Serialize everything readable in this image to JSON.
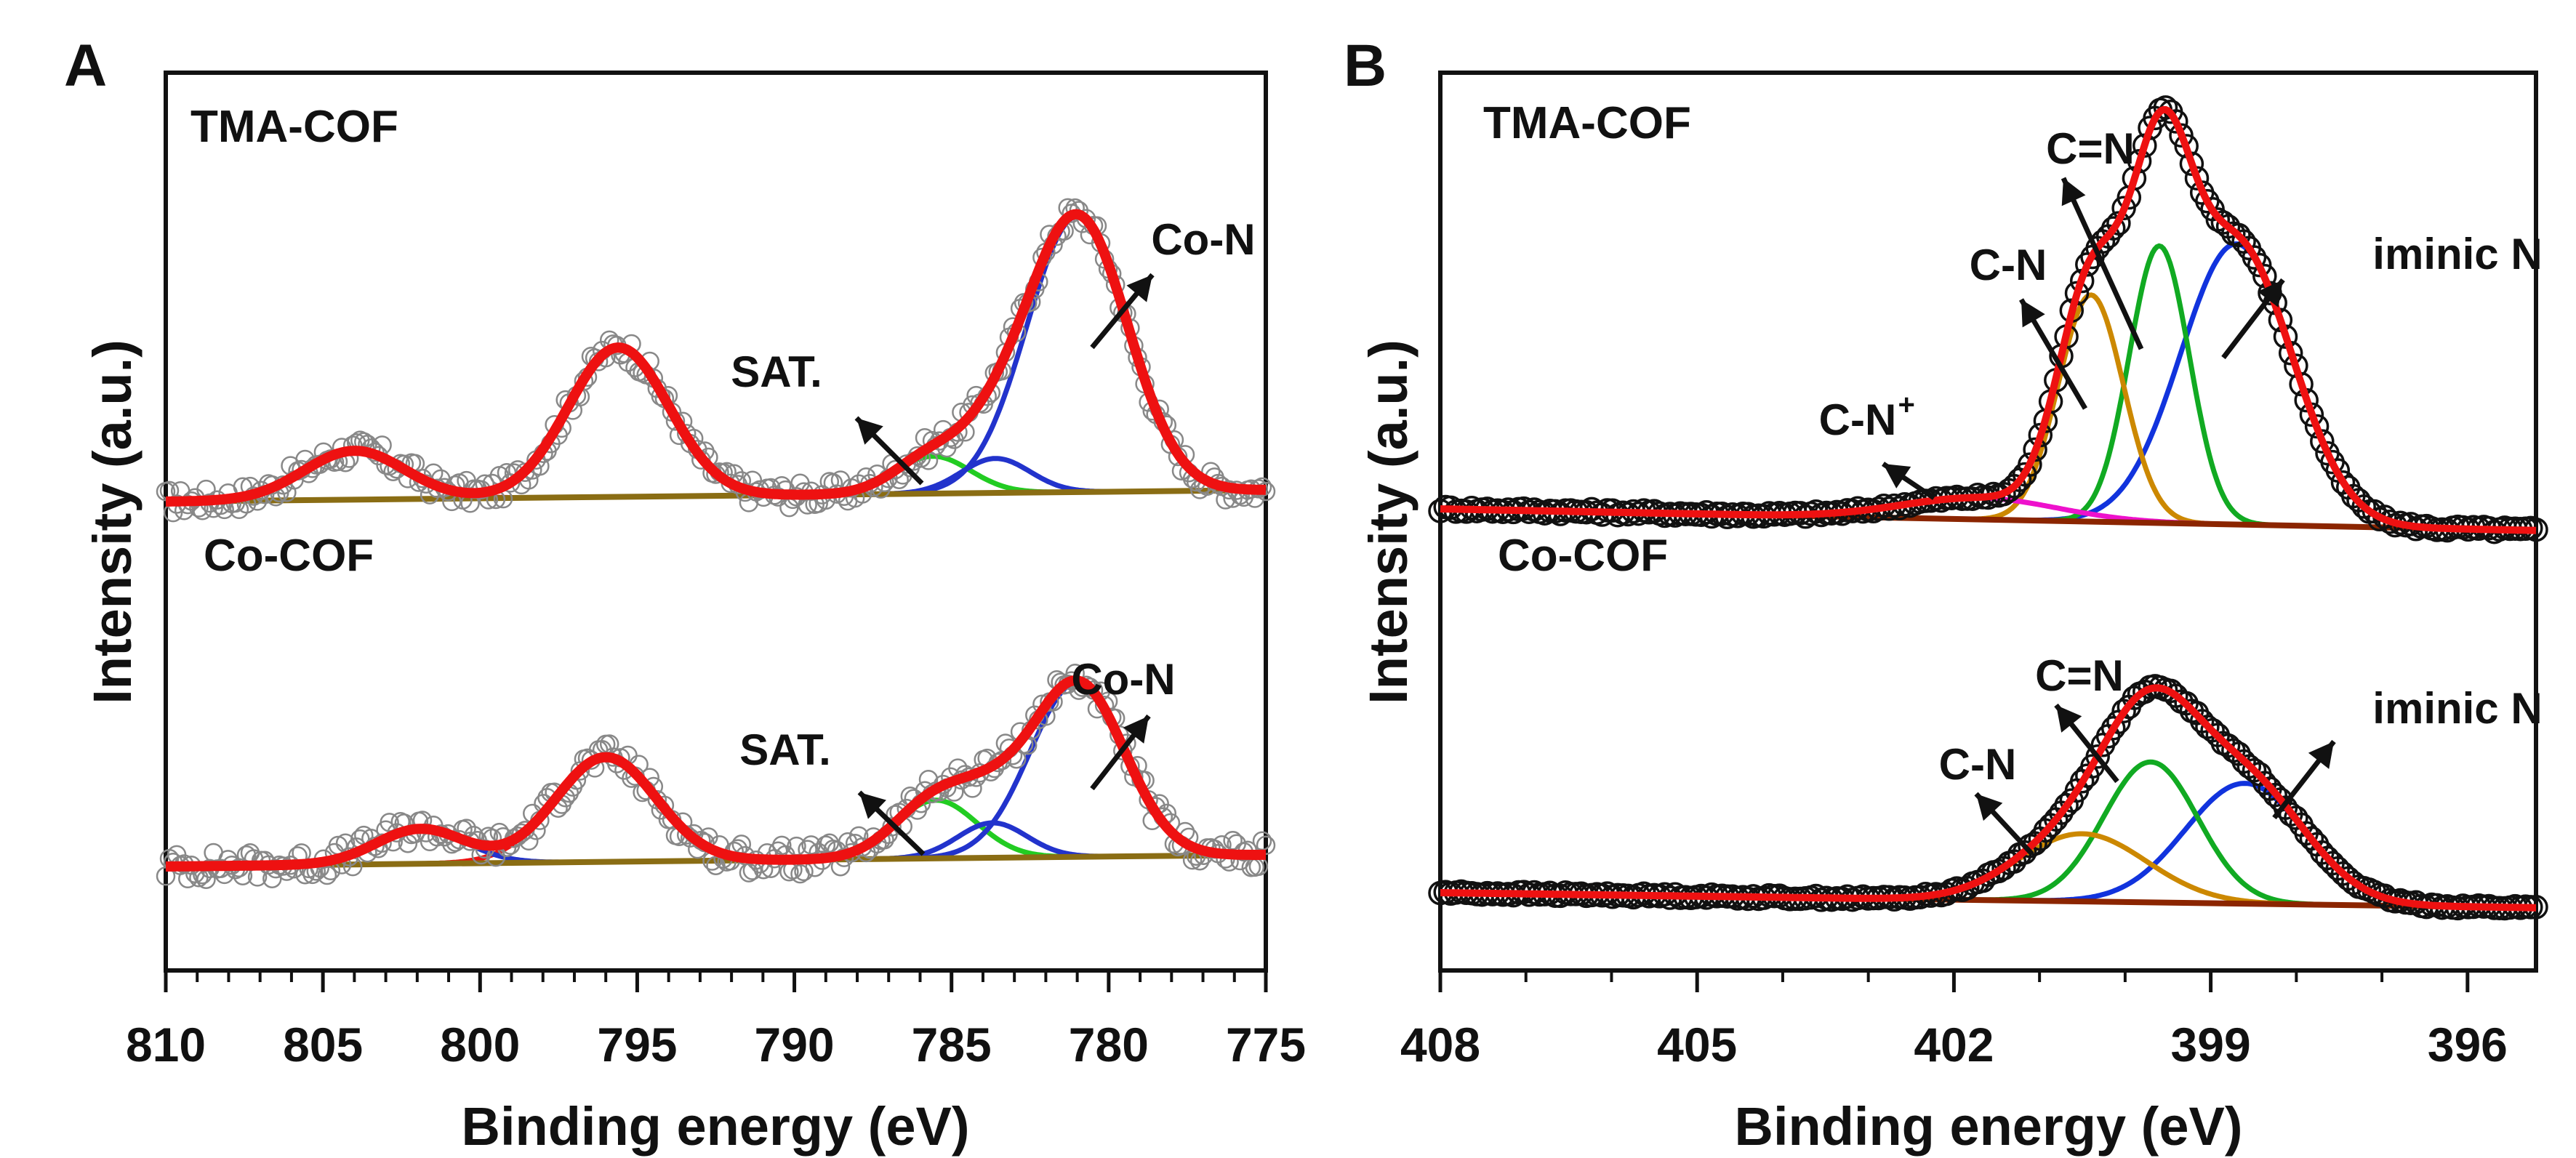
{
  "chart_data": [
    {
      "type": "line",
      "panel_label": "A",
      "xlabel": "Binding energy (eV)",
      "ylabel": "Intensity (a.u.)",
      "xlim": [
        810,
        775
      ],
      "x_reversed": true,
      "xticks": [
        810,
        805,
        800,
        795,
        790,
        785,
        780,
        775
      ],
      "xtick_labels": [
        "810",
        "805",
        "800",
        "795",
        "790",
        "785",
        "780",
        "775"
      ],
      "spectra": [
        {
          "sample": "TMA-COF",
          "baseline": [
            0,
            0.04
          ],
          "noise": 0.045,
          "peaks": [
            {
              "label": "SAT.",
              "center": 785.6,
              "height": 0.13,
              "width": 1.2,
              "color": "#22cc22"
            },
            {
              "label": "Co-N",
              "center": 781.0,
              "height": 0.96,
              "width": 1.6,
              "color": "#2233cc"
            },
            {
              "label": "",
              "center": 783.6,
              "height": 0.12,
              "width": 1.1,
              "color": "#2233cc"
            },
            {
              "label": "",
              "center": 795.6,
              "height": 0.52,
              "width": 1.6,
              "color": "#ee1111"
            },
            {
              "label": "",
              "center": 804.0,
              "height": 0.17,
              "width": 1.6,
              "color": "#ee1111"
            }
          ],
          "annotations": [
            {
              "text": "Co-N",
              "x": 779.4
            },
            {
              "text": "SAT.",
              "x": 786.5
            }
          ]
        },
        {
          "sample": "Co-COF",
          "baseline": [
            0,
            0.04
          ],
          "noise": 0.05,
          "peaks": [
            {
              "label": "SAT.",
              "center": 785.5,
              "height": 0.2,
              "width": 1.3,
              "color": "#22cc22"
            },
            {
              "label": "Co-N",
              "center": 781.0,
              "height": 0.6,
              "width": 1.5,
              "color": "#2233cc"
            },
            {
              "label": "",
              "center": 783.7,
              "height": 0.12,
              "width": 1.1,
              "color": "#2233cc"
            },
            {
              "label": "",
              "center": 796.0,
              "height": 0.36,
              "width": 1.6,
              "color": "#ee1111"
            },
            {
              "label": "",
              "center": 801.9,
              "height": 0.12,
              "width": 1.4,
              "color": "#2233cc"
            }
          ],
          "annotations": [
            {
              "text": "Co-N",
              "x": 779.4
            },
            {
              "text": "SAT.",
              "x": 786.5
            }
          ]
        }
      ],
      "colors": {
        "envelope": "#ee1111",
        "baseline": "#8a6d14",
        "data_points": "#888888"
      }
    },
    {
      "type": "line",
      "panel_label": "B",
      "xlabel": "Binding energy (eV)",
      "ylabel": "Intensity (a.u.)",
      "xlim": [
        408,
        395.2
      ],
      "x_reversed": true,
      "xticks": [
        408,
        405,
        402,
        399,
        396
      ],
      "xtick_labels": [
        "408",
        "405",
        "402",
        "399",
        "396"
      ],
      "spectra": [
        {
          "sample": "TMA-COF",
          "baseline": [
            0,
            -0.06
          ],
          "noise": 0.008,
          "peaks": [
            {
              "label": "iminic N",
              "center": 398.7,
              "height": 0.78,
              "width": 0.65,
              "color": "#1133dd"
            },
            {
              "label": "C=N",
              "center": 399.6,
              "height": 0.77,
              "width": 0.35,
              "color": "#11aa22"
            },
            {
              "label": "C-N",
              "center": 400.4,
              "height": 0.63,
              "width": 0.38,
              "color": "#cc8800"
            },
            {
              "label": "C-N+",
              "center": 401.7,
              "height": 0.06,
              "width": 0.9,
              "color": "#ee11cc"
            }
          ],
          "annotations": [
            {
              "text": "C=N",
              "x": 399.8
            },
            {
              "text": "C-N",
              "x": 400.6
            },
            {
              "text": "C-N",
              "superscript": "+",
              "x": 402.0
            },
            {
              "text": "iminic N",
              "x": 398.3
            }
          ]
        },
        {
          "sample": "Co-COF",
          "baseline": [
            0,
            -0.06
          ],
          "noise": 0.008,
          "peaks": [
            {
              "label": "iminic N",
              "center": 398.6,
              "height": 0.48,
              "width": 0.7,
              "color": "#1133dd"
            },
            {
              "label": "C=N",
              "center": 399.7,
              "height": 0.56,
              "width": 0.55,
              "color": "#11aa22"
            },
            {
              "label": "C-N",
              "center": 400.5,
              "height": 0.27,
              "width": 0.75,
              "color": "#cc8800"
            }
          ],
          "annotations": [
            {
              "text": "C=N",
              "x": 399.9
            },
            {
              "text": "C-N",
              "x": 401.0
            },
            {
              "text": "iminic N",
              "x": 398.2
            }
          ]
        }
      ],
      "colors": {
        "envelope": "#ee1111",
        "baseline": "#8b2500",
        "data_points": "#111111"
      }
    }
  ]
}
